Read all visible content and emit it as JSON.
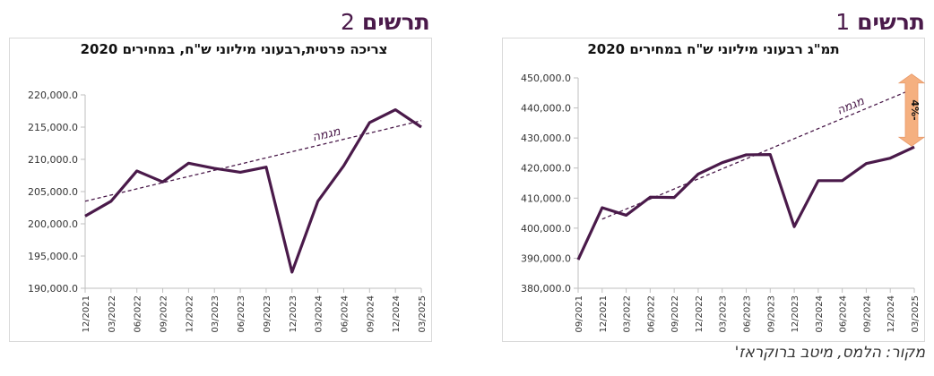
{
  "headings": {
    "left": {
      "word": "תרשים",
      "num": "2"
    },
    "right": {
      "word": "תרשים",
      "num": "1"
    }
  },
  "source": "מקור: הלמס, מיטב ברוקראז'",
  "colors": {
    "line": "#4a1a4a",
    "trend": "#4a1a4a",
    "arrow": "#f5b080"
  },
  "chart_data": [
    {
      "type": "line",
      "title": "צריכה פרטית,רבעוני מיליוני ש\"ח, במחירים 2020",
      "categories": [
        "12/2021",
        "03/2022",
        "06/2022",
        "09/2022",
        "12/2022",
        "03/2023",
        "06/2023",
        "09/2023",
        "12/2023",
        "03/2024",
        "06/2024",
        "09/2024",
        "12/2024",
        "03/2025"
      ],
      "series": [
        {
          "values": [
            201200,
            203500,
            208200,
            206500,
            209400,
            208600,
            208000,
            208800,
            192500,
            203500,
            209000,
            215700,
            217700,
            215000
          ]
        }
      ],
      "trend": {
        "label": "מגמה",
        "start": 203500,
        "end": 216000
      },
      "yticks": [
        "190,000.0",
        "195,000.0",
        "200,000.0",
        "205,000.0",
        "210,000.0",
        "215,000.0",
        "220,000.0"
      ],
      "ylim": [
        190000,
        220000
      ],
      "grid": false
    },
    {
      "type": "line",
      "title": "תמ\"ג רבעוני מיליוני ש\"ח במחירים 2020",
      "categories": [
        "09/2021",
        "12/2021",
        "03/2022",
        "06/2022",
        "09/2022",
        "12/2022",
        "03/2023",
        "06/2023",
        "09/2023",
        "12/2023",
        "03/2024",
        "06/2024",
        "09/2024",
        "12/2024",
        "03/2025"
      ],
      "series": [
        {
          "values": [
            389500,
            406800,
            404300,
            410300,
            410200,
            418000,
            421800,
            424400,
            424500,
            400500,
            415800,
            415800,
            421500,
            423300,
            427000
          ]
        }
      ],
      "trend": {
        "label": "מגמה",
        "start": 403000,
        "end": 446500
      },
      "annotation": {
        "label": "4%-"
      },
      "yticks": [
        "380,000.0",
        "390,000.0",
        "400,000.0",
        "410,000.0",
        "420,000.0",
        "430,000.0",
        "440,000.0",
        "450,000.0"
      ],
      "ylim": [
        380000,
        450000
      ],
      "grid": false
    }
  ]
}
